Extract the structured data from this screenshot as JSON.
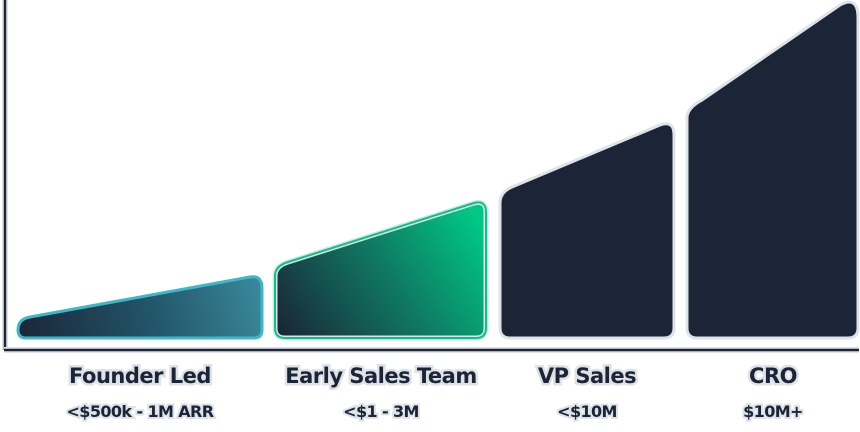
{
  "stages": [
    {
      "id": "founder-led",
      "title": "Founder Led",
      "subtitle": "<$500k - 1M ARR",
      "fill": "teal-gradient",
      "stroke": "#3fb8c6"
    },
    {
      "id": "early-sales-team",
      "title": "Early Sales Team",
      "subtitle": "<$1 - 3M",
      "fill": "green-gradient",
      "stroke": "#00c784"
    },
    {
      "id": "vp-sales",
      "title": "VP Sales",
      "subtitle": "<$10M",
      "fill": "#1b2537",
      "stroke": "#dfe3e8"
    },
    {
      "id": "cro",
      "title": "CRO",
      "subtitle": "$10M+",
      "fill": "#1b2537",
      "stroke": "#dfe3e8"
    }
  ],
  "colors": {
    "navy": "#1b2537",
    "axis": "#1b2537",
    "outline": "#dfe3e8",
    "teal": "#3fa0b0",
    "green": "#00c784"
  }
}
